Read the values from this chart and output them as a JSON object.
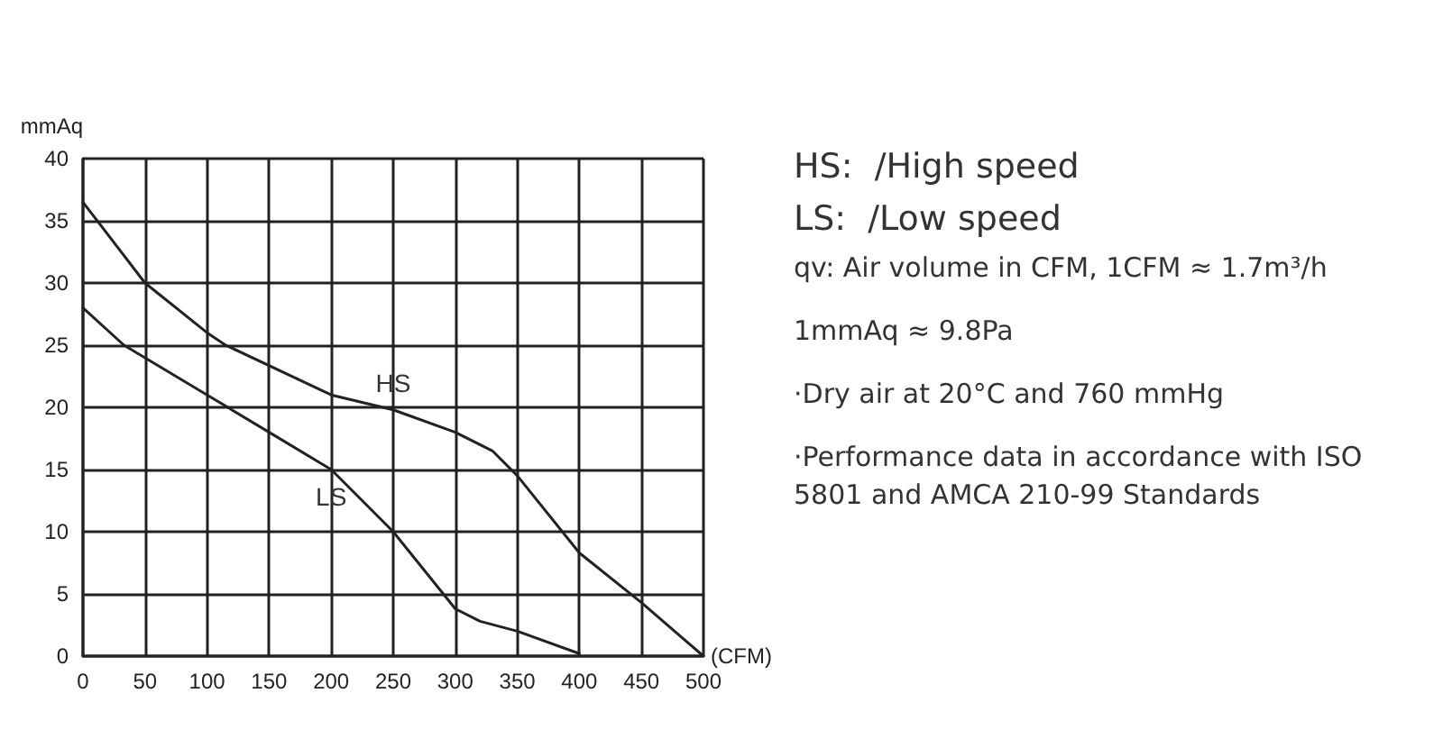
{
  "chart_data": {
    "type": "line",
    "ylabel": "mmAq",
    "xlabel": "(CFM)",
    "xlim": [
      0,
      500
    ],
    "xticks": [
      0,
      50,
      100,
      150,
      200,
      250,
      300,
      350,
      400,
      450,
      500
    ],
    "ylim": [
      0,
      40
    ],
    "yticks": [
      0,
      5,
      10,
      15,
      20,
      25,
      30,
      35,
      40
    ],
    "grid": true,
    "marker": "none",
    "line_style": "solid",
    "series": [
      {
        "name": "HS",
        "color": "#222222",
        "x": [
          0,
          50,
          100,
          115,
          200,
          250,
          300,
          330,
          350,
          400,
          450,
          500
        ],
        "values": [
          36.5,
          30,
          26,
          25,
          21,
          19.8,
          18,
          16.5,
          14.5,
          8.3,
          4.3,
          0
        ]
      },
      {
        "name": "LS",
        "color": "#222222",
        "x": [
          0,
          33,
          100,
          150,
          200,
          250,
          300,
          320,
          350,
          400
        ],
        "values": [
          28,
          25,
          21,
          18,
          15,
          10,
          3.8,
          2.8,
          2,
          0.2
        ]
      }
    ],
    "annotations": [
      "HS:  /High speed",
      "LS:  /Low speed",
      "qv: Air volume in CFM, 1CFM ≈ 1.7m³/h",
      "1mmAq ≈ 9.8Pa",
      "·Dry air at 20°C and 760 mmHg",
      "·Performance data in accordance with ISO 5801 and AMCA 210-99 Standards"
    ]
  }
}
